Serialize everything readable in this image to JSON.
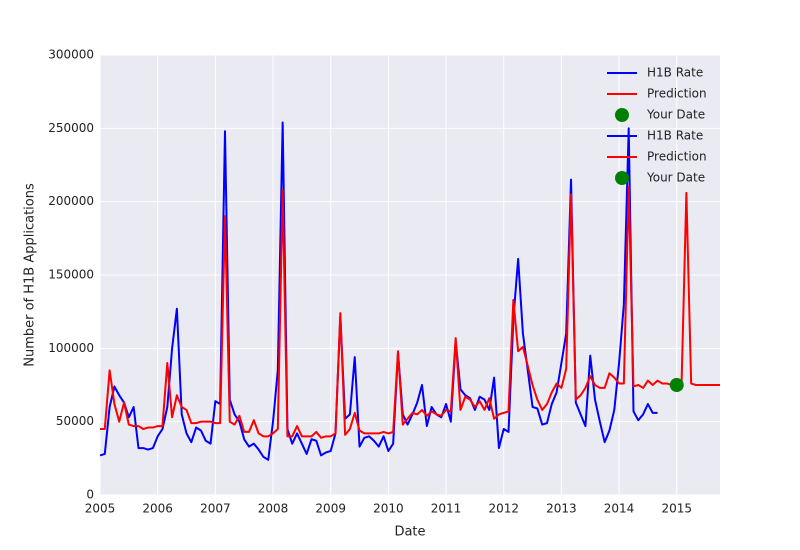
{
  "chart_data": {
    "type": "line",
    "xlabel": "Date",
    "ylabel": "Number of H1B Applications",
    "xlim": [
      2005,
      2015.75
    ],
    "ylim": [
      0,
      300000
    ],
    "xticks": [
      2005,
      2006,
      2007,
      2008,
      2009,
      2010,
      2011,
      2012,
      2013,
      2014,
      2015
    ],
    "yticks": [
      0,
      50000,
      100000,
      150000,
      200000,
      250000,
      300000
    ],
    "grid": true,
    "legend": "upper right",
    "legend_repeats": 2,
    "x": [
      2005,
      2005.083,
      2005.167,
      2005.25,
      2005.333,
      2005.417,
      2005.5,
      2005.583,
      2005.667,
      2005.75,
      2005.833,
      2005.917,
      2006,
      2006.083,
      2006.167,
      2006.25,
      2006.333,
      2006.417,
      2006.5,
      2006.583,
      2006.667,
      2006.75,
      2006.833,
      2006.917,
      2007,
      2007.083,
      2007.167,
      2007.25,
      2007.333,
      2007.417,
      2007.5,
      2007.583,
      2007.667,
      2007.75,
      2007.833,
      2007.917,
      2008,
      2008.083,
      2008.167,
      2008.25,
      2008.333,
      2008.417,
      2008.5,
      2008.583,
      2008.667,
      2008.75,
      2008.833,
      2008.917,
      2009,
      2009.083,
      2009.167,
      2009.25,
      2009.333,
      2009.417,
      2009.5,
      2009.583,
      2009.667,
      2009.75,
      2009.833,
      2009.917,
      2010,
      2010.083,
      2010.167,
      2010.25,
      2010.333,
      2010.417,
      2010.5,
      2010.583,
      2010.667,
      2010.75,
      2010.833,
      2010.917,
      2011,
      2011.083,
      2011.167,
      2011.25,
      2011.333,
      2011.417,
      2011.5,
      2011.583,
      2011.667,
      2011.75,
      2011.833,
      2011.917,
      2012,
      2012.083,
      2012.167,
      2012.25,
      2012.333,
      2012.417,
      2012.5,
      2012.583,
      2012.667,
      2012.75,
      2012.833,
      2012.917,
      2013,
      2013.083,
      2013.167,
      2013.25,
      2013.333,
      2013.417,
      2013.5,
      2013.583,
      2013.667,
      2013.75,
      2013.833,
      2013.917,
      2014,
      2014.083,
      2014.167,
      2014.25,
      2014.333,
      2014.417,
      2014.5,
      2014.583,
      2014.667,
      2014.75,
      2014.833,
      2014.917,
      2015,
      2015.083,
      2015.167,
      2015.25,
      2015.333,
      2015.417,
      2015.5,
      2015.583,
      2015.667,
      2015.75
    ],
    "series": [
      {
        "name": "H1B Rate",
        "color": "#0000ff",
        "values": [
          27000,
          28000,
          60000,
          74000,
          68000,
          63000,
          53000,
          60000,
          32000,
          32000,
          31000,
          32000,
          40000,
          45000,
          60000,
          100000,
          127000,
          55000,
          42000,
          36000,
          46000,
          44000,
          37000,
          35000,
          64000,
          62000,
          248000,
          65000,
          55000,
          50000,
          38000,
          33000,
          35000,
          31000,
          26000,
          24000,
          50000,
          85000,
          254000,
          45000,
          35000,
          42000,
          35000,
          28000,
          38000,
          37000,
          27000,
          29000,
          30000,
          42000,
          122000,
          52000,
          55000,
          94000,
          33000,
          39000,
          40000,
          37000,
          33000,
          40000,
          30000,
          35000,
          97000,
          55000,
          48000,
          55000,
          63000,
          75000,
          47000,
          60000,
          55000,
          53000,
          62000,
          50000,
          105000,
          72000,
          68000,
          66000,
          58000,
          67000,
          65000,
          58000,
          80000,
          32000,
          45000,
          43000,
          120000,
          161000,
          110000,
          85000,
          60000,
          59000,
          48000,
          49000,
          62000,
          70000,
          90000,
          110000,
          215000,
          63000,
          55000,
          47000,
          95000,
          65000,
          50000,
          36000,
          44000,
          58000,
          90000,
          130000,
          250000,
          57000,
          51000,
          55000,
          62000,
          56000,
          56000,
          null,
          null,
          null,
          null,
          null,
          null,
          null,
          null,
          null,
          null,
          null,
          null,
          null
        ]
      },
      {
        "name": "Prediction",
        "color": "#ff0000",
        "values": [
          45000,
          45000,
          85000,
          62000,
          50000,
          63000,
          48000,
          47000,
          47000,
          45000,
          46000,
          46000,
          47000,
          47000,
          90000,
          53000,
          68000,
          60000,
          58000,
          49000,
          49000,
          50000,
          50000,
          50000,
          49000,
          49000,
          190000,
          50000,
          48000,
          54000,
          43000,
          43000,
          51000,
          42000,
          40000,
          40000,
          42000,
          45000,
          208000,
          40000,
          40000,
          47000,
          40000,
          40000,
          40000,
          43000,
          39000,
          40000,
          40000,
          42000,
          124000,
          41000,
          45000,
          56000,
          44000,
          42000,
          42000,
          42000,
          42000,
          43000,
          42000,
          43000,
          98000,
          48000,
          52000,
          56000,
          55000,
          58000,
          54000,
          57000,
          55000,
          54000,
          58000,
          57000,
          107000,
          58000,
          67000,
          65000,
          60000,
          64000,
          58000,
          66000,
          52000,
          55000,
          56000,
          57000,
          133000,
          98000,
          101000,
          88000,
          75000,
          65000,
          58000,
          62000,
          70000,
          76000,
          73000,
          86000,
          205000,
          65000,
          68000,
          73000,
          81000,
          75000,
          73000,
          73000,
          83000,
          80000,
          76000,
          76000,
          210000,
          74000,
          75000,
          73000,
          78000,
          75000,
          78000,
          76000,
          76000,
          75000,
          75000,
          75000,
          206000,
          76000,
          75000,
          75000,
          75000,
          75000,
          75000,
          75000
        ]
      },
      {
        "name": "Your Date",
        "color": "#008000",
        "type": "scatter",
        "x": [
          2015
        ],
        "values": [
          75000
        ]
      }
    ]
  }
}
